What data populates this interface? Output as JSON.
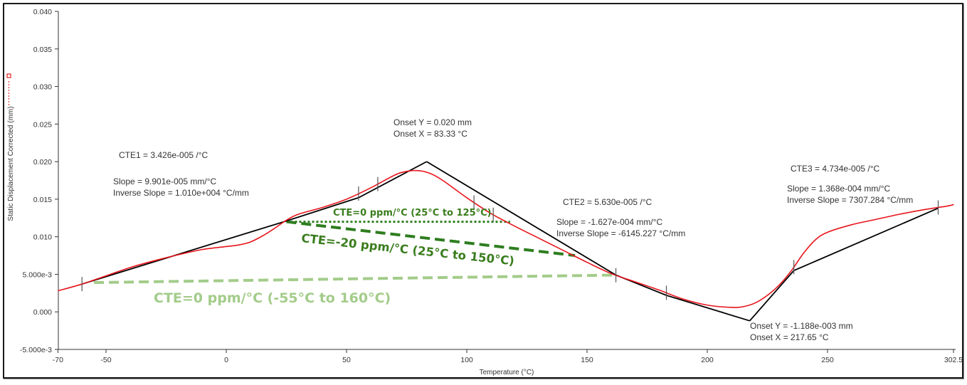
{
  "chart_data": {
    "type": "line",
    "title": "",
    "xlabel": "Temperature (°C)",
    "ylabel": "Static Displacement Corrected (mm)",
    "xlim": [
      -70,
      302.5
    ],
    "ylim": [
      -0.005,
      0.04
    ],
    "grid": false,
    "x_ticks": [
      "-70",
      "-50",
      "0",
      "50",
      "100",
      "150",
      "200",
      "250",
      "302.5"
    ],
    "y_ticks": [
      "0.040",
      "0.035",
      "0.030",
      "0.025",
      "0.020",
      "0.015",
      "0.010",
      "5.000e-3",
      "0.000",
      "-5.000e-3"
    ],
    "legend": {
      "position": "left",
      "entries": [
        {
          "name": "Static Displacement Corrected",
          "color": "#e02020",
          "marker": "square",
          "style": "dotted"
        }
      ]
    },
    "series": [
      {
        "name": "Static Displacement Corrected (mm)",
        "color": "#e8141b",
        "x": [
          -70,
          -60,
          -50,
          -40,
          -30,
          -20,
          -10,
          0,
          5,
          10,
          15,
          20,
          25,
          30,
          40,
          50,
          60,
          70,
          75,
          80,
          85,
          90,
          100,
          110,
          120,
          130,
          140,
          150,
          160,
          170,
          180,
          190,
          200,
          210,
          215,
          220,
          225,
          230,
          235,
          240,
          245,
          250,
          260,
          270,
          280,
          290,
          300,
          302.5
        ],
        "y": [
          0.0028,
          0.0037,
          0.0048,
          0.0059,
          0.0068,
          0.0076,
          0.0083,
          0.0087,
          0.0089,
          0.0093,
          0.0101,
          0.0111,
          0.0122,
          0.013,
          0.0139,
          0.015,
          0.0165,
          0.0182,
          0.0187,
          0.0188,
          0.0184,
          0.0175,
          0.0152,
          0.0131,
          0.0114,
          0.0098,
          0.0082,
          0.0066,
          0.0051,
          0.004,
          0.0029,
          0.0017,
          0.0009,
          0.0006,
          0.0007,
          0.0012,
          0.0022,
          0.0036,
          0.0055,
          0.0078,
          0.0096,
          0.0106,
          0.0116,
          0.0123,
          0.013,
          0.0136,
          0.0141,
          0.0143
        ]
      }
    ],
    "fit_lines": [
      {
        "name": "CTE1 tangent",
        "color": "#000000",
        "points": [
          [
            -60,
            0.0037
          ],
          [
            25,
            0.0121
          ],
          [
            55,
            0.0152
          ],
          [
            83.33,
            0.02
          ]
        ]
      },
      {
        "name": "CTE2 tangent",
        "color": "#000000",
        "points": [
          [
            83.33,
            0.02
          ],
          [
            162,
            0.0049
          ],
          [
            183,
            0.0022
          ],
          [
            217.65,
            -0.00119
          ]
        ]
      },
      {
        "name": "CTE3 tangent",
        "color": "#000000",
        "points": [
          [
            217.65,
            -0.00119
          ],
          [
            236,
            0.0055
          ],
          [
            296,
            0.0138
          ]
        ]
      }
    ],
    "markers_x": [
      -60,
      55,
      63,
      103,
      111,
      162,
      183,
      236,
      296
    ],
    "overlay_lines": [
      {
        "label": "CTE=0 ppm/°C (25°C to 125°C)",
        "color": "#2e7d1f",
        "style": "dotted",
        "from": [
          25,
          0.012
        ],
        "to": [
          118,
          0.012
        ]
      },
      {
        "label": "CTE=-20 ppm/°C (25°C to 150°C)",
        "color": "#2e7d1f",
        "style": "dashed",
        "from": [
          25,
          0.012
        ],
        "to": [
          145,
          0.0075
        ]
      },
      {
        "label": "CTE=0 ppm/°C (-55°C to 160°C)",
        "color": "#a3cc8a",
        "style": "dashed",
        "from": [
          -55,
          0.0039
        ],
        "to": [
          162,
          0.0049
        ]
      }
    ]
  },
  "axes": {
    "y_title": "Static Displacement Corrected (mm)",
    "x_title": "Temperature (°C)",
    "y_ticks": [
      {
        "label": "0.040",
        "v": 0.04
      },
      {
        "label": "0.035",
        "v": 0.035
      },
      {
        "label": "0.030",
        "v": 0.03
      },
      {
        "label": "0.025",
        "v": 0.025
      },
      {
        "label": "0.020",
        "v": 0.02
      },
      {
        "label": "0.015",
        "v": 0.015
      },
      {
        "label": "0.010",
        "v": 0.01
      },
      {
        "label": "5.000e-3",
        "v": 0.005
      },
      {
        "label": "0.000",
        "v": 0.0
      },
      {
        "label": "-5.000e-3",
        "v": -0.005
      }
    ],
    "x_ticks": [
      {
        "label": "-70",
        "t": -70
      },
      {
        "label": "-50",
        "t": -50
      },
      {
        "label": "0",
        "t": 0
      },
      {
        "label": "50",
        "t": 50
      },
      {
        "label": "100",
        "t": 100
      },
      {
        "label": "150",
        "t": 150
      },
      {
        "label": "200",
        "t": 200
      },
      {
        "label": "250",
        "t": 250
      },
      {
        "label": "302.5",
        "t": 302.5
      }
    ]
  },
  "annotations": {
    "cte1": {
      "title": "CTE1 = 3.426e-005 /°C",
      "slope": "Slope  = 9.901e-005 mm/°C",
      "inverse": "Inverse Slope  = 1.010e+004 °C/mm"
    },
    "onset1": {
      "y": "Onset Y = 0.020 mm",
      "x": "Onset X = 83.33 °C"
    },
    "cte2": {
      "title": "CTE2 = 5.630e-005  /°C",
      "slope": "Slope  = -1.627e-004 mm/°C",
      "inverse": "Inverse Slope  = -6145.227 °C/mm"
    },
    "cte3": {
      "title": "CTE3 = 4.734e-005  /°C",
      "slope": "Slope  = 1.368e-004 mm/°C",
      "inverse": "Inverse Slope  = 7307.284 °C/mm"
    },
    "onset2": {
      "y": "Onset Y = -1.188e-003 mm",
      "x": "Onset X = 217.65 °C"
    },
    "overlay1": "CTE=0 ppm/°C (25°C to 125°C)",
    "overlay2": "CTE=-20 ppm/°C (25°C to 150°C)",
    "overlay3": "CTE=0 ppm/°C (-55°C to 160°C)"
  },
  "colors": {
    "curve": "#e8141b",
    "fit": "#000000",
    "overlay_dark": "#2e7d1f",
    "overlay_light": "#a3cc8a",
    "axis": "#333333"
  }
}
